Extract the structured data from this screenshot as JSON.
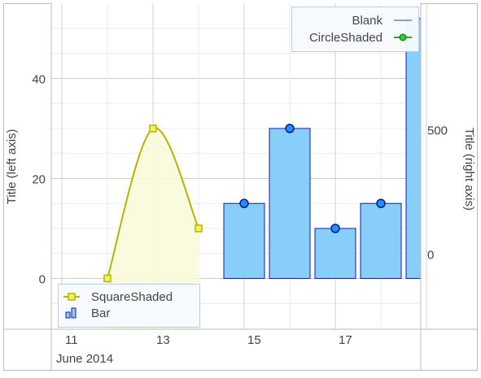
{
  "chart_data": {
    "type": "bar",
    "date_axis_label": "June 2014",
    "x_ticks": [
      "11",
      "13",
      "15",
      "17"
    ],
    "left_axis": {
      "label": "Title (left axis)",
      "ticks": [
        0,
        20,
        40
      ],
      "range": [
        -10,
        55
      ]
    },
    "right_axis": {
      "label": "Title (right axis)",
      "ticks": [
        0,
        500
      ],
      "range": [
        -100,
        1000
      ]
    },
    "grid": true,
    "series": [
      {
        "name": "Bar",
        "kind": "bar",
        "axis": "left",
        "color": "#87cefa",
        "border": "#1a1aa6",
        "points": [
          {
            "date": "2014-06-15",
            "value": 15
          },
          {
            "date": "2014-06-16",
            "value": 30
          },
          {
            "date": "2014-06-17",
            "value": 10
          },
          {
            "date": "2014-06-18",
            "value": 15
          },
          {
            "date": "2014-06-19",
            "value": 52
          }
        ]
      },
      {
        "name": "CircleShaded",
        "kind": "markers",
        "axis": "left",
        "color": "#1e90ff",
        "points": [
          {
            "date": "2014-06-15",
            "value": 15
          },
          {
            "date": "2014-06-16",
            "value": 30
          },
          {
            "date": "2014-06-17",
            "value": 10
          },
          {
            "date": "2014-06-18",
            "value": 15
          }
        ]
      },
      {
        "name": "SquareShaded",
        "kind": "spline-area",
        "axis": "left",
        "color": "#b5b500",
        "fill": "#fafadc",
        "points": [
          {
            "date": "2014-06-12",
            "value": 0
          },
          {
            "date": "2014-06-13",
            "value": 30
          },
          {
            "date": "2014-06-14",
            "value": 10
          }
        ]
      },
      {
        "name": "Blank",
        "kind": "line",
        "axis": "right",
        "color": "#7aa6d6",
        "points": []
      }
    ],
    "legends": {
      "top_right": [
        {
          "name": "Blank",
          "icon": "blank-line-icon",
          "color": "#7aa6d6"
        },
        {
          "name": "CircleShaded",
          "icon": "green-circle-line-icon",
          "color": "#22aa22"
        }
      ],
      "bottom_left": [
        {
          "name": "SquareShaded",
          "icon": "yellow-square-line-icon",
          "color": "#b5b500"
        },
        {
          "name": "Bar",
          "icon": "bar-chart-icon",
          "color": "#4a90d9"
        }
      ]
    }
  }
}
